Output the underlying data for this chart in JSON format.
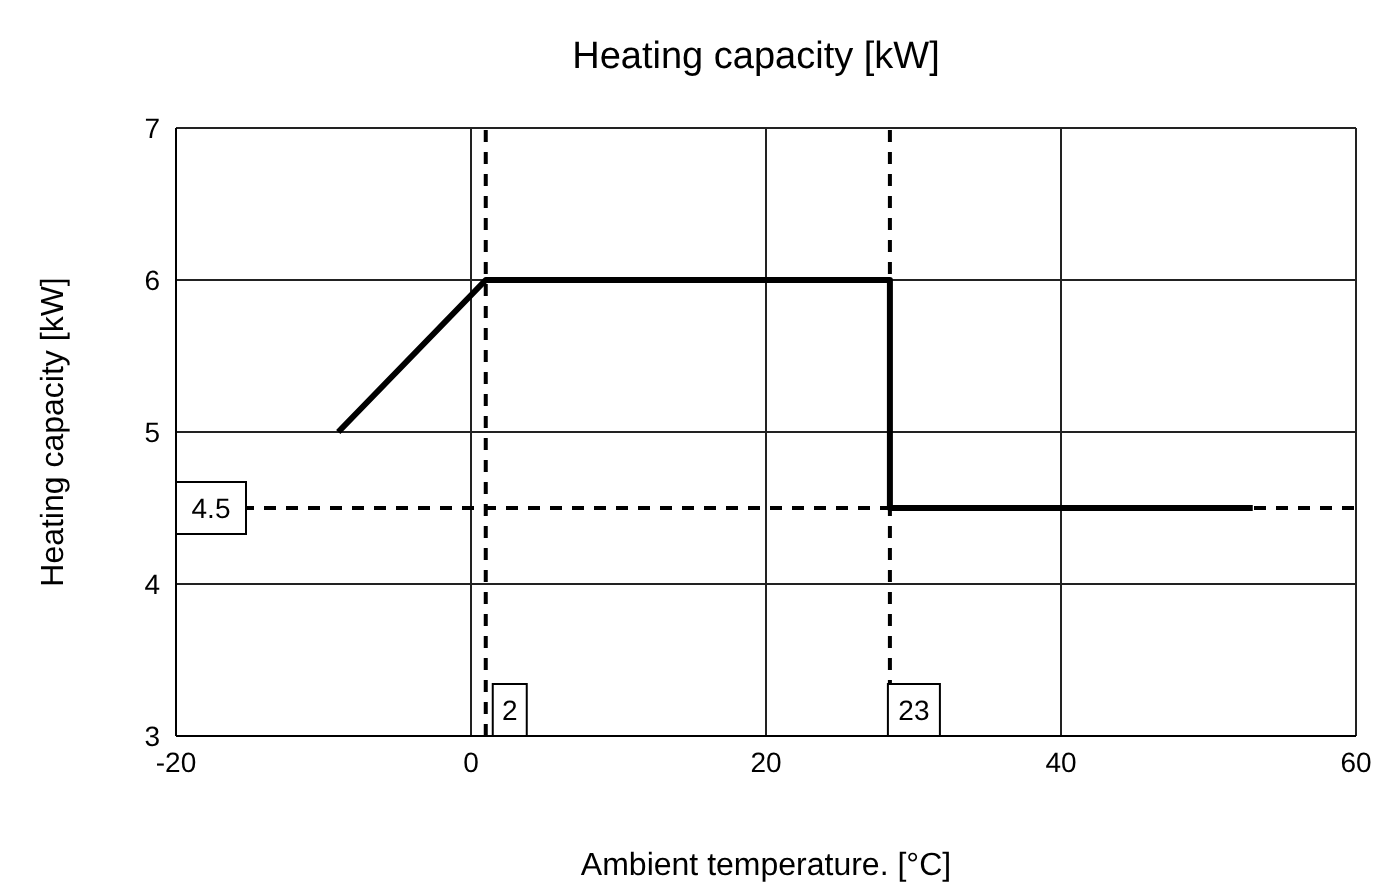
{
  "chart_data": {
    "type": "line",
    "title": "Heating capacity [kW]",
    "xlabel": "Ambient temperature. [°C]",
    "ylabel": "Heating capacity [kW]",
    "x": [
      -9,
      1,
      28.4,
      28.4,
      53
    ],
    "series": [
      {
        "color": "#000000",
        "values": [
          5,
          6,
          6,
          4.5,
          4.5
        ]
      }
    ],
    "xlim": [
      -20,
      60
    ],
    "xticks": [
      -20,
      0,
      20,
      40,
      60
    ],
    "ylim": [
      3,
      7
    ],
    "yticks": [
      3,
      4,
      5,
      6,
      7
    ],
    "grid": true,
    "marker": "none",
    "line_style": "solid",
    "annotations": [
      {
        "text": "2",
        "x": 1,
        "y": 3
      },
      {
        "text": "23",
        "x": 28.4,
        "y": 3
      }
    ],
    "ref_lines": [
      {
        "axis": "x",
        "value": 1,
        "color": "#000000",
        "line_style": "dashed"
      },
      {
        "axis": "x",
        "value": 28.4,
        "color": "#000000",
        "line_style": "dashed"
      },
      {
        "axis": "y",
        "value": 4.5,
        "label": "4.5",
        "color": "#000000",
        "line_style": "dashed"
      }
    ]
  }
}
